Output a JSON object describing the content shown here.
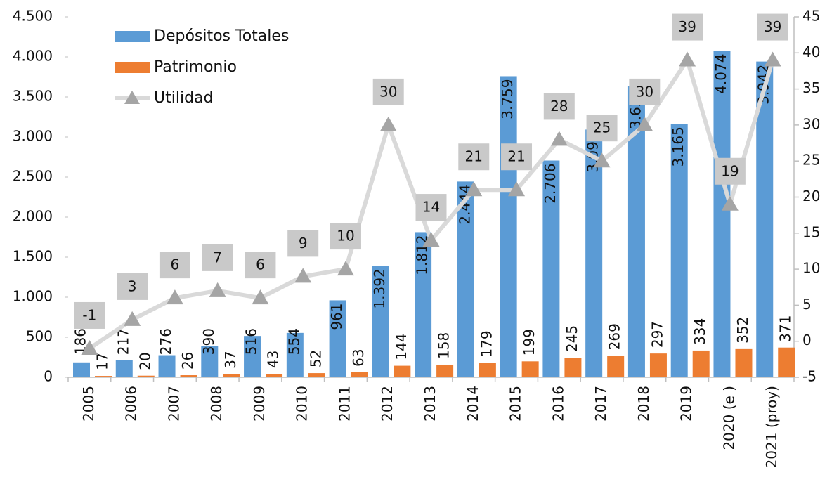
{
  "chart_data": {
    "type": "bar_line",
    "categories": [
      "2005",
      "2006",
      "2007",
      "2008",
      "2009",
      "2010",
      "2011",
      "2012",
      "2013",
      "2014",
      "2015",
      "2016",
      "2017",
      "2018",
      "2019",
      "2020 (e )",
      "2021 (proy)"
    ],
    "series": [
      {
        "name": "Depósitos Totales",
        "color": "#5b9bd5",
        "type": "bar",
        "values": [
          186,
          217,
          276,
          390,
          516,
          554,
          961,
          1392,
          1812,
          2444,
          3759,
          2706,
          3093,
          3634,
          3165,
          4074,
          3942
        ],
        "value_labels": [
          "186",
          "217",
          "276",
          "390",
          "516",
          "554",
          "961",
          "1.392",
          "1.812",
          "2.444",
          "3.759",
          "2.706",
          "3.093",
          "3.634",
          "3.165",
          "4.074",
          "3.942"
        ]
      },
      {
        "name": "Patrimonio",
        "color": "#ed7d31",
        "type": "bar",
        "values": [
          17,
          20,
          26,
          37,
          43,
          52,
          63,
          144,
          158,
          179,
          199,
          245,
          269,
          297,
          334,
          352,
          371
        ]
      },
      {
        "name": "Utilidad",
        "color": "#d9d9d9",
        "type": "line",
        "axis": "y2",
        "values": [
          -1,
          3,
          6,
          7,
          6,
          9,
          10,
          30,
          14,
          21,
          21,
          28,
          25,
          30,
          39,
          19,
          39
        ]
      }
    ],
    "ylim": [
      0,
      4500
    ],
    "yticks": [
      0,
      500,
      {
        "value": 1000,
        "label": "1.000"
      },
      {
        "value": 1500,
        "label": "1.500"
      },
      {
        "value": 2000,
        "label": "2.000"
      },
      {
        "value": 2500,
        "label": "2.500"
      },
      {
        "value": 3000,
        "label": "3.000"
      },
      {
        "value": 3500,
        "label": "3.500"
      },
      {
        "value": 4000,
        "label": "4.000"
      },
      {
        "value": 4500,
        "label": "4.500"
      }
    ],
    "y2lim": [
      -5,
      45
    ],
    "y2ticks": [
      -5,
      0,
      5,
      10,
      15,
      20,
      25,
      30,
      35,
      40,
      45
    ],
    "legend": "top-left"
  }
}
